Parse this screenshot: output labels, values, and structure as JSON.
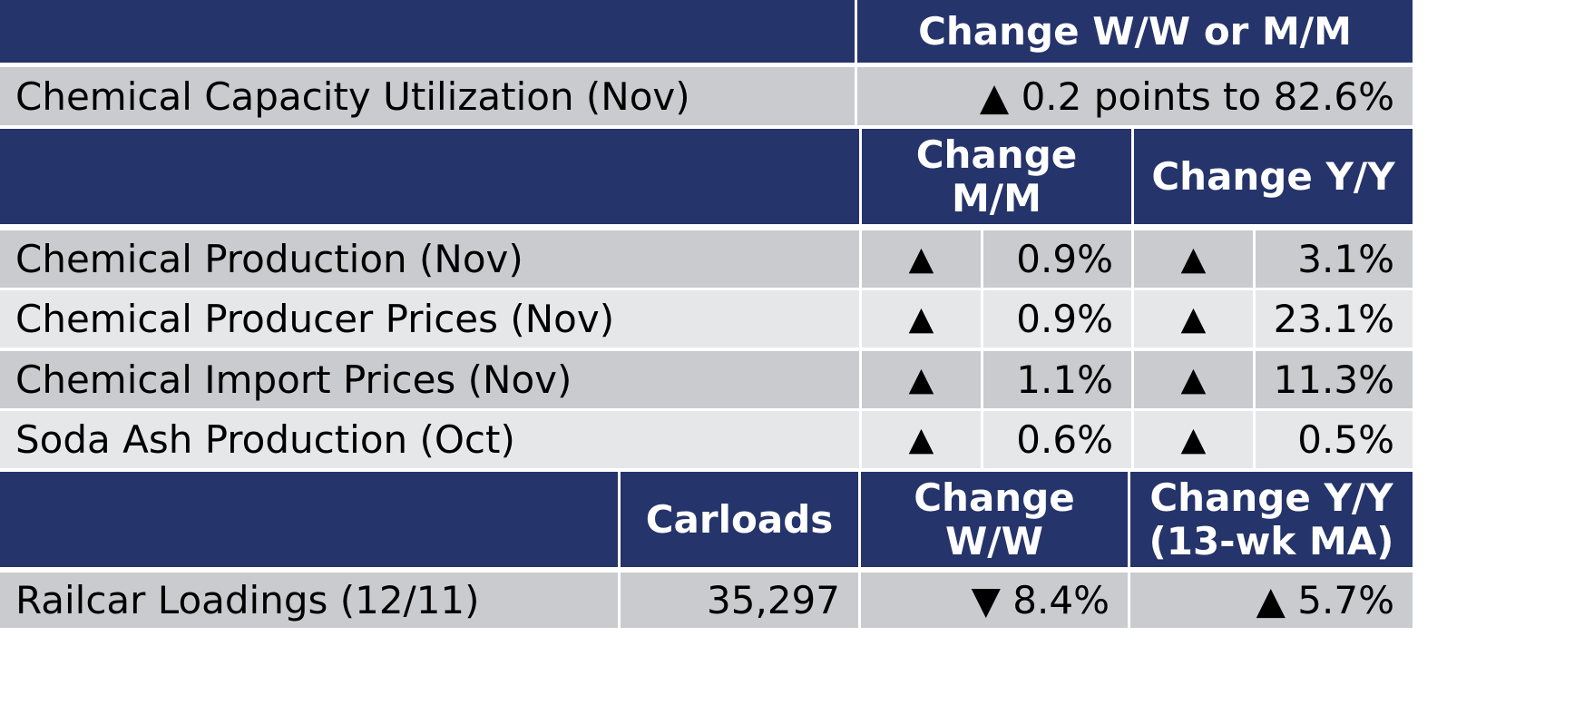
{
  "header1": {
    "label_blank": "",
    "change": "Change W/W or M/M"
  },
  "capacity": {
    "label": "Chemical Capacity Utilization (Nov)",
    "change": "▲ 0.2 points to 82.6%"
  },
  "header2": {
    "change_mm_line1": "Change",
    "change_mm_line2": "M/M",
    "change_yy": "Change Y/Y"
  },
  "rows": [
    {
      "label": "Chemical Production (Nov)",
      "mm_arrow": "▲",
      "mm_value": "0.9%",
      "yy_arrow": "▲",
      "yy_value": "3.1%"
    },
    {
      "label": "Chemical Producer Prices (Nov)",
      "mm_arrow": "▲",
      "mm_value": "0.9%",
      "yy_arrow": "▲",
      "yy_value": "23.1%"
    },
    {
      "label": "Chemical Import Prices (Nov)",
      "mm_arrow": "▲",
      "mm_value": "1.1%",
      "yy_arrow": "▲",
      "yy_value": "11.3%"
    },
    {
      "label": "Soda Ash Production (Oct)",
      "mm_arrow": "▲",
      "mm_value": "0.6%",
      "yy_arrow": "▲",
      "yy_value": "0.5%"
    }
  ],
  "header3": {
    "carloads": "Carloads",
    "change_ww_line1": "Change",
    "change_ww_line2": "W/W",
    "change_yy_line1": "Change Y/Y",
    "change_yy_line2": "(13-wk MA)"
  },
  "railcar": {
    "label": "Railcar Loadings (12/11)",
    "carloads": "35,297",
    "change_ww": "▼ 8.4%",
    "change_yy": "▲ 5.7%"
  },
  "colors": {
    "header_bg": "#25346a",
    "row_dark": "#cacbcf",
    "row_light": "#e6e7e9"
  }
}
